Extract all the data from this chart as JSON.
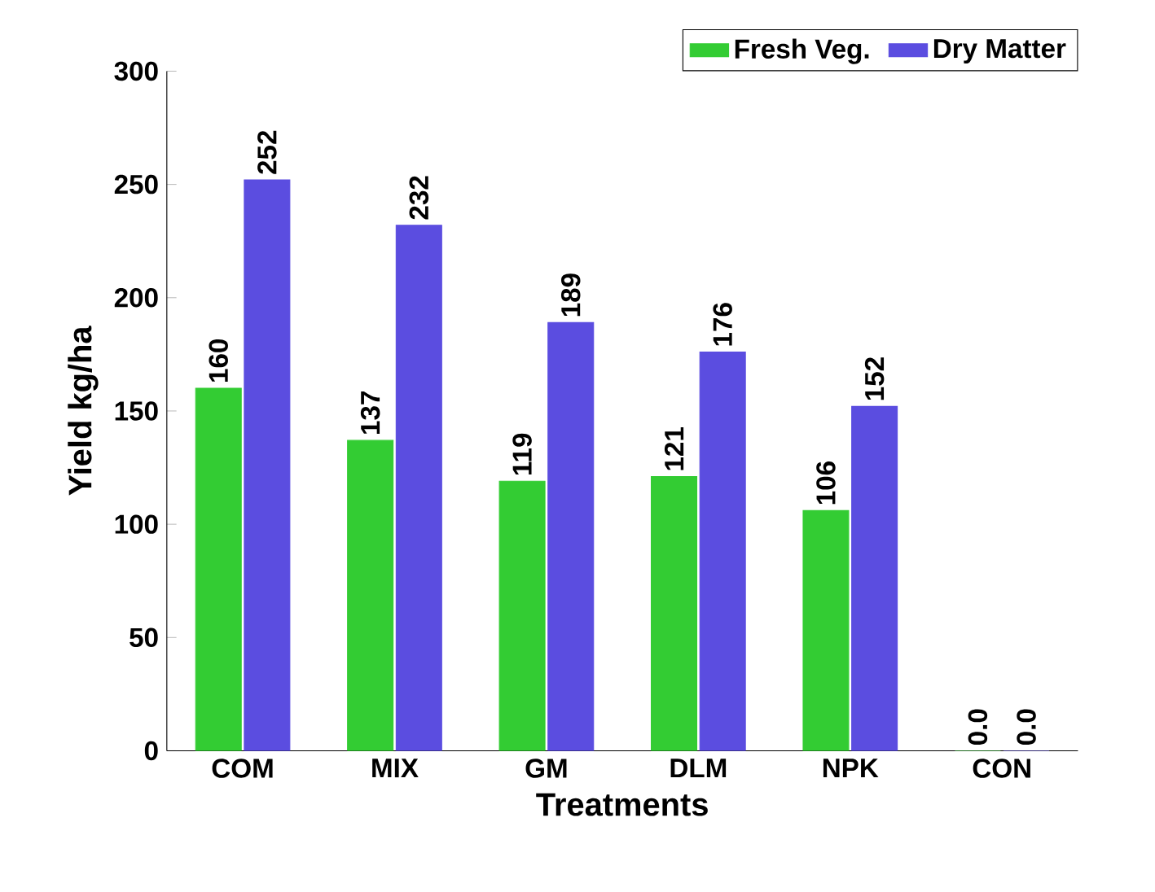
{
  "chart_data": {
    "type": "bar",
    "xlabel": "Treatments",
    "ylabel": "Yield kg/ha",
    "categories": [
      "COM",
      "MIX",
      "GM",
      "DLM",
      "NPK",
      "CON"
    ],
    "series": [
      {
        "name": "Fresh Veg.",
        "color": "#33cc33",
        "values": [
          160,
          137,
          119,
          121,
          106,
          0
        ],
        "value_labels": [
          "160",
          "137",
          "119",
          "121",
          "106",
          "0.0"
        ]
      },
      {
        "name": "Dry Matter",
        "color": "#5b4de0",
        "values": [
          252,
          232,
          189,
          176,
          152,
          0
        ],
        "value_labels": [
          "252",
          "232",
          "189",
          "176",
          "152",
          "0.0"
        ]
      }
    ],
    "ylim": [
      0,
      300
    ],
    "yticks": [
      0,
      50,
      100,
      150,
      200,
      250,
      300
    ],
    "legend": "top right",
    "grid": false
  }
}
